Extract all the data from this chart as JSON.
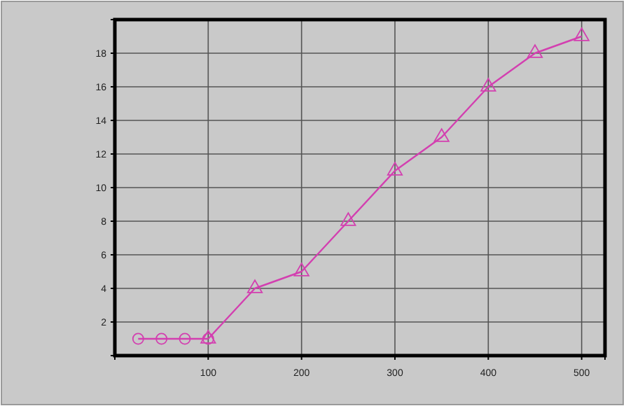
{
  "chart_data": {
    "type": "line",
    "xlim": [
      0,
      525
    ],
    "ylim": [
      0,
      20
    ],
    "xticks": [
      100,
      200,
      300,
      400,
      500
    ],
    "yticks": [
      2,
      4,
      6,
      8,
      10,
      12,
      14,
      16,
      18
    ],
    "grid": true,
    "line_style": "solid",
    "series": [
      {
        "color": "#d33fb0",
        "marker": "circle",
        "x": [
          25,
          50,
          75,
          100
        ],
        "values": [
          1,
          1,
          1,
          1
        ]
      },
      {
        "color": "#d33fb0",
        "marker": "triangle",
        "x": [
          100,
          150,
          200,
          250,
          300,
          350,
          400,
          450,
          500
        ],
        "values": [
          1,
          4,
          5,
          8,
          11,
          13,
          16,
          18,
          19
        ]
      }
    ]
  }
}
